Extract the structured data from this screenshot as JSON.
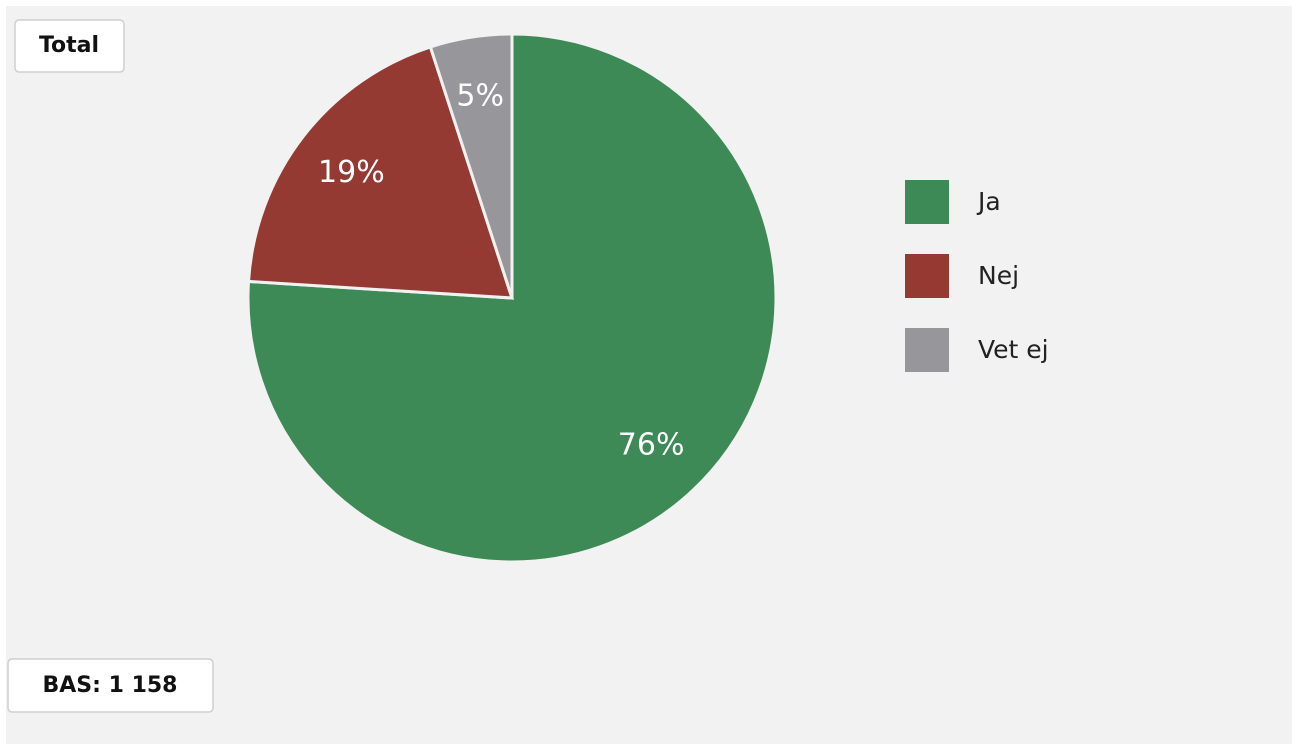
{
  "chart_data": {
    "type": "pie",
    "title": "Total",
    "note": "BAS: 1 158",
    "categories": [
      "Ja",
      "Nej",
      "Vet ej"
    ],
    "values": [
      76,
      19,
      5
    ],
    "value_labels": [
      "76%",
      "19%",
      "5%"
    ],
    "colors": [
      "#3d8a57",
      "#943a33",
      "#97979b"
    ],
    "legend": "right"
  }
}
